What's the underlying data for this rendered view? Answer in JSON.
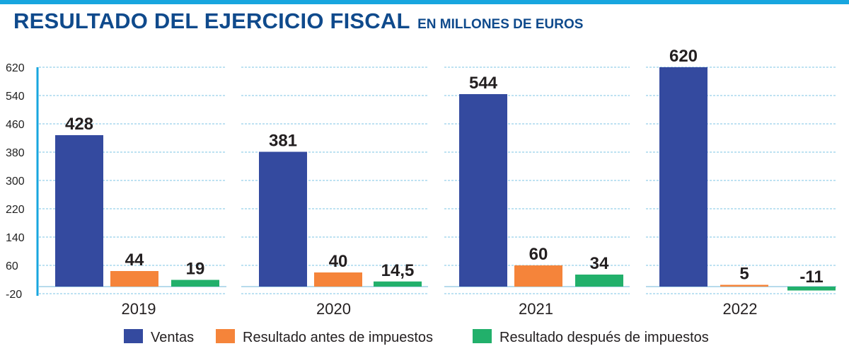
{
  "header": {
    "title": "RESULTADO DEL EJERCICIO FISCAL",
    "subtitle": "EN MILLONES DE EUROS"
  },
  "chart_data": {
    "type": "bar",
    "title": "RESULTADO DEL EJERCICIO FISCAL",
    "subtitle": "EN MILLONES DE EUROS",
    "categories": [
      "2019",
      "2020",
      "2021",
      "2022"
    ],
    "series": [
      {
        "name": "Ventas",
        "color": "#344a9f",
        "values": [
          428,
          381,
          544,
          620
        ],
        "labels": [
          "428",
          "381",
          "544",
          "620"
        ]
      },
      {
        "name": "Resultado antes de impuestos",
        "color": "#f5843a",
        "values": [
          44,
          40,
          60,
          5
        ],
        "labels": [
          "44",
          "40",
          "60",
          "5"
        ]
      },
      {
        "name": "Resultado después de impuestos",
        "color": "#22b06b",
        "values": [
          19,
          14.5,
          34,
          -11
        ],
        "labels": [
          "19",
          "14,5",
          "34",
          "-11"
        ]
      }
    ],
    "yticks": [
      "620",
      "540",
      "460",
      "380",
      "300",
      "220",
      "140",
      "60",
      "-20"
    ],
    "ylim": [
      -20,
      620
    ],
    "grid": true,
    "legend": "bottom",
    "xlabel": "",
    "ylabel": ""
  }
}
